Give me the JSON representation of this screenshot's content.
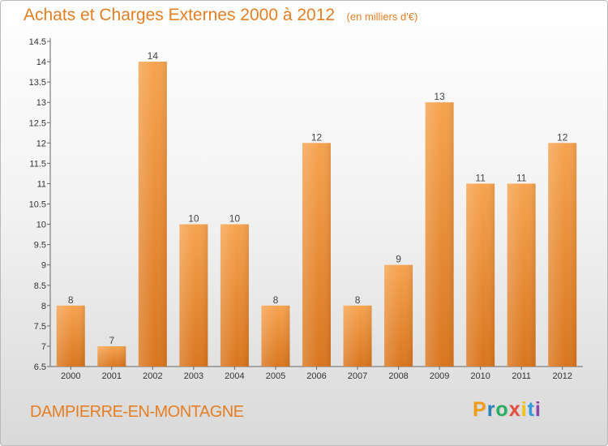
{
  "header": {
    "title": "Achats et Charges Externes 2000 à 2012",
    "unit": "(en milliers d'€)"
  },
  "footer": {
    "commune": "DAMPIERRE-EN-MONTAGNE",
    "brand": "Proxiti",
    "brand_colors": [
      "#f39c12",
      "#2980b9",
      "#27ae60",
      "#e74c3c",
      "#f1c40f",
      "#3498db",
      "#8e44ad"
    ]
  },
  "colors": {
    "accent": "#e67e22",
    "bar_light": "#f6a34f",
    "bar_dark": "#d9761f"
  },
  "chart_data": {
    "type": "bar",
    "categories": [
      "2000",
      "2001",
      "2002",
      "2003",
      "2004",
      "2005",
      "2006",
      "2007",
      "2008",
      "2009",
      "2010",
      "2011",
      "2012"
    ],
    "values": [
      8,
      7,
      14,
      10,
      10,
      8,
      12,
      8,
      9,
      13,
      11,
      11,
      12
    ],
    "ylim": [
      6.5,
      14.5
    ],
    "yticks": [
      "6.5",
      "7",
      "7.5",
      "8",
      "8.5",
      "9",
      "9.5",
      "10",
      "10.5",
      "11",
      "11.5",
      "12",
      "12.5",
      "13",
      "13.5",
      "14",
      "14.5"
    ],
    "grid": false
  }
}
